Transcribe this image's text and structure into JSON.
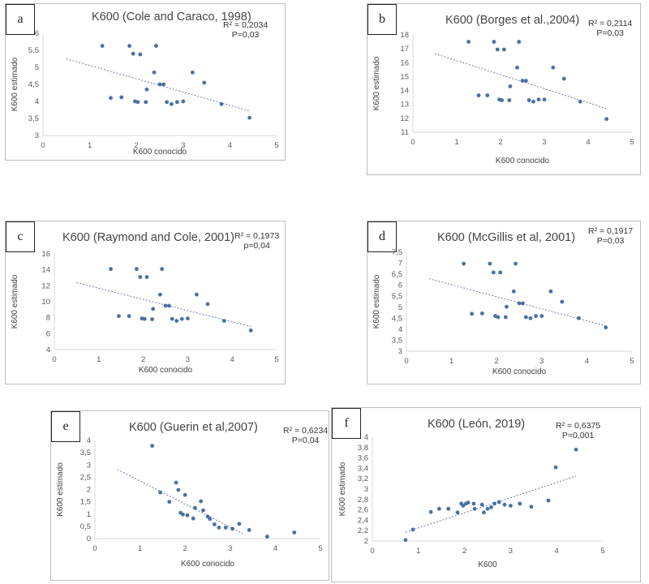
{
  "colors": {
    "point": "#4a6fa5",
    "trend": "#6b7fb0",
    "axis": "#d9d9d9",
    "text": "#595959"
  },
  "chart_data": [
    {
      "letter": "a",
      "type": "scatter",
      "title": "K600 (Cole and Caraco, 1998)",
      "r2": "R² = 0,2034",
      "p": "P=0,03",
      "xlabel": "K600 conocido",
      "ylabel": "K600 estimado",
      "xlim": [
        0,
        5
      ],
      "ylim": [
        3,
        6
      ],
      "xticks": [
        0,
        1,
        2,
        3,
        4,
        5
      ],
      "yticks": [
        3,
        3.5,
        4,
        4.5,
        5,
        5.5,
        6
      ],
      "ytick_labels": [
        "3",
        "3,5",
        "4",
        "4,5",
        "5",
        "5,5",
        "6"
      ],
      "x": [
        1.27,
        1.45,
        1.68,
        1.85,
        1.93,
        1.97,
        2.03,
        2.08,
        2.2,
        2.22,
        2.38,
        2.42,
        2.5,
        2.58,
        2.65,
        2.75,
        2.87,
        3.0,
        3.2,
        3.45,
        3.82,
        4.42
      ],
      "y": [
        5.63,
        4.1,
        4.12,
        5.63,
        5.4,
        4.0,
        3.98,
        5.38,
        3.98,
        4.35,
        4.85,
        5.63,
        4.5,
        4.5,
        3.98,
        3.92,
        3.98,
        4.0,
        4.85,
        4.55,
        3.92,
        3.52
      ],
      "trend": [
        [
          0.5,
          5.25
        ],
        [
          4.42,
          3.72
        ]
      ]
    },
    {
      "letter": "b",
      "type": "scatter",
      "title": "K600 (Borges et al.,2004)",
      "r2": "R² = 0,2114",
      "p": "P=0,03",
      "xlabel": "K600 conocido",
      "ylabel": "K600 estimado",
      "xlim": [
        0,
        5
      ],
      "ylim": [
        11,
        18
      ],
      "xticks": [
        0,
        1,
        2,
        3,
        4,
        5
      ],
      "yticks": [
        11,
        12,
        13,
        14,
        15,
        16,
        17,
        18
      ],
      "ytick_labels": [
        "11",
        "12",
        "13",
        "14",
        "15",
        "16",
        "17",
        "18"
      ],
      "x": [
        1.27,
        1.5,
        1.7,
        1.85,
        1.93,
        1.97,
        2.03,
        2.08,
        2.2,
        2.22,
        2.38,
        2.42,
        2.5,
        2.58,
        2.65,
        2.75,
        2.87,
        3.0,
        3.2,
        3.45,
        3.82,
        4.42
      ],
      "y": [
        17.5,
        13.65,
        13.65,
        17.5,
        16.95,
        13.35,
        13.3,
        16.95,
        13.3,
        14.3,
        15.65,
        17.5,
        14.7,
        14.7,
        13.3,
        13.2,
        13.35,
        13.35,
        15.65,
        14.85,
        13.2,
        11.95
      ],
      "trend": [
        [
          0.5,
          16.65
        ],
        [
          4.42,
          12.7
        ]
      ]
    },
    {
      "letter": "c",
      "type": "scatter",
      "title": "K600  (Raymond and Cole, 2001)",
      "r2": "R² = 0,1973",
      "p": "p=0,04",
      "xlabel": "K600 conocido",
      "ylabel": "K600 estimado",
      "xlim": [
        0,
        5
      ],
      "ylim": [
        4,
        16
      ],
      "xticks": [
        0,
        1,
        2,
        3,
        4,
        5
      ],
      "yticks": [
        4,
        6,
        8,
        10,
        12,
        14,
        16
      ],
      "ytick_labels": [
        "4",
        "6",
        "8",
        "10",
        "12",
        "14",
        "16"
      ],
      "x": [
        1.27,
        1.45,
        1.68,
        1.85,
        1.93,
        1.97,
        2.03,
        2.08,
        2.2,
        2.22,
        2.38,
        2.42,
        2.5,
        2.58,
        2.65,
        2.75,
        2.87,
        3.0,
        3.2,
        3.45,
        3.82,
        4.42
      ],
      "y": [
        14.1,
        8.2,
        8.2,
        14.1,
        13.1,
        7.9,
        7.85,
        13.1,
        7.8,
        9.1,
        10.9,
        14.1,
        9.5,
        9.5,
        7.85,
        7.6,
        7.85,
        7.9,
        10.9,
        9.7,
        7.6,
        6.4
      ],
      "trend": [
        [
          0.5,
          12.4
        ],
        [
          4.42,
          6.9
        ]
      ]
    },
    {
      "letter": "d",
      "type": "scatter",
      "title": "K600  (McGillis et al, 2001)",
      "r2": "R² = 0,1917",
      "p": "P=0,03",
      "xlabel": "K600 conocido",
      "ylabel": "K600 estimado",
      "xlim": [
        0,
        5
      ],
      "ylim": [
        3,
        7.5
      ],
      "xticks": [
        0,
        1,
        2,
        3,
        4,
        5
      ],
      "yticks": [
        3,
        3.5,
        4,
        4.5,
        5,
        5.5,
        6,
        6.5,
        7,
        7.5
      ],
      "ytick_labels": [
        "3",
        "3,5",
        "4",
        "4,5",
        "5",
        "5,5",
        "6",
        "6,5",
        "7",
        "7,5"
      ],
      "x": [
        1.27,
        1.45,
        1.68,
        1.85,
        1.93,
        1.97,
        2.03,
        2.08,
        2.2,
        2.22,
        2.38,
        2.42,
        2.5,
        2.58,
        2.65,
        2.75,
        2.87,
        3.0,
        3.2,
        3.45,
        3.82,
        4.42
      ],
      "y": [
        6.98,
        4.7,
        4.72,
        6.98,
        6.58,
        4.6,
        4.55,
        6.58,
        4.55,
        5.02,
        5.72,
        6.98,
        5.18,
        5.18,
        4.55,
        4.5,
        4.6,
        4.6,
        5.72,
        5.25,
        4.5,
        4.08
      ],
      "trend": [
        [
          0.5,
          6.3
        ],
        [
          4.42,
          4.15
        ]
      ]
    },
    {
      "letter": "e",
      "type": "scatter",
      "title": "K600 (Guerin et al,2007)",
      "r2": "R² = 0,6234",
      "p": "P=0,04",
      "xlabel": "K600 conocido",
      "ylabel": "K600 estimado",
      "xlim": [
        0,
        5
      ],
      "ylim": [
        0,
        4
      ],
      "xticks": [
        0,
        1,
        2,
        3,
        4,
        5
      ],
      "yticks": [
        0,
        0.5,
        1,
        1.5,
        2,
        2.5,
        3,
        3.5,
        4
      ],
      "ytick_labels": [
        "0",
        "0,5",
        "1",
        "1,5",
        "2",
        "2,5",
        "3",
        "3,5",
        "4"
      ],
      "x": [
        1.27,
        1.45,
        1.65,
        1.8,
        1.85,
        1.9,
        1.95,
        2.0,
        2.05,
        2.18,
        2.22,
        2.35,
        2.4,
        2.5,
        2.55,
        2.65,
        2.75,
        2.9,
        3.05,
        3.2,
        3.42,
        3.82,
        4.42
      ],
      "y": [
        3.78,
        1.88,
        1.5,
        2.28,
        1.98,
        1.05,
        0.98,
        1.78,
        0.95,
        0.82,
        1.25,
        1.52,
        1.15,
        0.9,
        0.8,
        0.58,
        0.45,
        0.45,
        0.4,
        0.6,
        0.35,
        0.08,
        0.25
      ],
      "trend": [
        [
          0.5,
          2.82
        ],
        [
          3.3,
          0.18
        ]
      ]
    },
    {
      "letter": "f",
      "type": "scatter",
      "title": "K600 (León, 2019)",
      "r2": "R² = 0,6375",
      "p": "P=0,001",
      "xlabel": "K600",
      "ylabel": "K600 estimado",
      "xlim": [
        0,
        5
      ],
      "ylim": [
        2,
        4
      ],
      "xticks": [
        0,
        1,
        2,
        3,
        4,
        5
      ],
      "yticks": [
        2,
        2.2,
        2.4,
        2.6,
        2.8,
        3,
        3.2,
        3.4,
        3.6,
        3.8,
        4
      ],
      "ytick_labels": [
        "2",
        "2,2",
        "2,4",
        "2,6",
        "2,8",
        "3",
        "3,2",
        "3,4",
        "3,6",
        "3,8",
        "4"
      ],
      "x": [
        0.72,
        0.88,
        1.27,
        1.45,
        1.65,
        1.85,
        1.93,
        1.97,
        2.03,
        2.08,
        2.2,
        2.22,
        2.38,
        2.42,
        2.5,
        2.58,
        2.65,
        2.75,
        2.87,
        3.0,
        3.2,
        3.45,
        3.82,
        3.98,
        4.42
      ],
      "y": [
        2.02,
        2.22,
        2.56,
        2.62,
        2.62,
        2.55,
        2.72,
        2.68,
        2.72,
        2.74,
        2.72,
        2.62,
        2.7,
        2.55,
        2.62,
        2.65,
        2.72,
        2.75,
        2.7,
        2.68,
        2.72,
        2.66,
        2.78,
        3.42,
        3.76
      ],
      "trend": [
        [
          0.72,
          2.17
        ],
        [
          4.42,
          3.25
        ]
      ]
    }
  ]
}
